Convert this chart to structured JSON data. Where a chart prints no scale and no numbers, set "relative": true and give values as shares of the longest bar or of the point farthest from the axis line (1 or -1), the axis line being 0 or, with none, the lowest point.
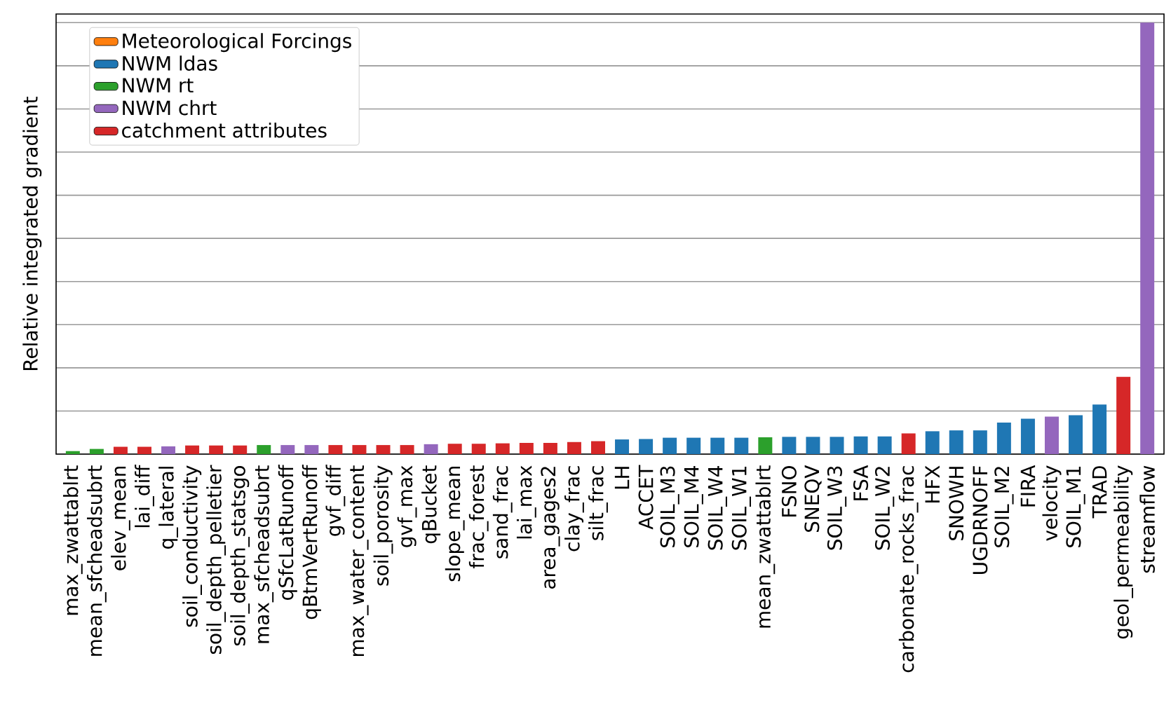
{
  "chart_data": {
    "type": "bar",
    "ylabel": "Relative integrated gradient",
    "relative": true,
    "grid": "y",
    "legend": "top left",
    "categories": [
      "max_zwattablrt",
      "mean_sfcheadsubrt",
      "elev_mean",
      "lai_diff",
      "q_lateral",
      "soil_conductivity",
      "soil_depth_pelletier",
      "soil_depth_statsgo",
      "max_sfcheadsubrt",
      "qSfcLatRunoff",
      "qBtmVertRunoff",
      "gvf_diff",
      "max_water_content",
      "soil_porosity",
      "gvf_max",
      "qBucket",
      "slope_mean",
      "frac_forest",
      "sand_frac",
      "lai_max",
      "area_gages2",
      "clay_frac",
      "silt_frac",
      "LH",
      "ACCET",
      "SOIL_M3",
      "SOIL_M4",
      "SOIL_W4",
      "SOIL_W1",
      "mean_zwattablrt",
      "FSNO",
      "SNEQV",
      "SOIL_W3",
      "FSA",
      "SOIL_W2",
      "carbonate_rocks_frac",
      "HFX",
      "SNOWH",
      "UGDRNOFF",
      "SOIL_M2",
      "FIRA",
      "velocity",
      "SOIL_M1",
      "TRAD",
      "geol_permeability",
      "streamflow"
    ],
    "series": [
      {
        "name": "Meteorological Forcings",
        "color": "#ff7f0e",
        "values": [
          null,
          null,
          null,
          null,
          null,
          null,
          null,
          null,
          null,
          null,
          null,
          null,
          null,
          null,
          null,
          null,
          null,
          null,
          null,
          null,
          null,
          null,
          null,
          null,
          null,
          null,
          null,
          null,
          null,
          null,
          null,
          null,
          null,
          null,
          null,
          null,
          null,
          null,
          null,
          null,
          null,
          null,
          null,
          null,
          null,
          null
        ]
      },
      {
        "name": "NWM ldas",
        "color": "#1f77b4",
        "values": [
          null,
          null,
          null,
          null,
          null,
          null,
          null,
          null,
          null,
          null,
          null,
          null,
          null,
          null,
          null,
          null,
          null,
          null,
          null,
          null,
          null,
          null,
          null,
          0.034,
          0.035,
          0.038,
          0.038,
          0.038,
          0.038,
          null,
          0.04,
          0.04,
          0.04,
          0.041,
          0.041,
          null,
          0.053,
          0.055,
          0.055,
          0.073,
          0.082,
          null,
          0.09,
          0.115,
          null,
          null
        ]
      },
      {
        "name": "NWM rt",
        "color": "#2ca02c",
        "values": [
          0.007,
          0.012,
          null,
          null,
          null,
          null,
          null,
          null,
          0.021,
          null,
          null,
          null,
          null,
          null,
          null,
          null,
          null,
          null,
          null,
          null,
          null,
          null,
          null,
          null,
          null,
          null,
          null,
          null,
          null,
          0.039,
          null,
          null,
          null,
          null,
          null,
          null,
          null,
          null,
          null,
          null,
          null,
          null,
          null,
          null,
          null,
          null
        ]
      },
      {
        "name": "NWM chrt",
        "color": "#9467bd",
        "values": [
          null,
          null,
          null,
          null,
          0.018,
          null,
          null,
          null,
          null,
          0.021,
          0.021,
          null,
          null,
          null,
          null,
          0.023,
          null,
          null,
          null,
          null,
          null,
          null,
          null,
          null,
          null,
          null,
          null,
          null,
          null,
          null,
          null,
          null,
          null,
          null,
          null,
          null,
          null,
          null,
          null,
          null,
          null,
          0.087,
          null,
          null,
          null,
          1
        ]
      },
      {
        "name": "catchment attributes",
        "color": "#d62728",
        "values": [
          null,
          null,
          0.017,
          0.017,
          null,
          0.02,
          0.02,
          0.02,
          null,
          null,
          null,
          0.021,
          0.021,
          0.021,
          0.021,
          null,
          0.024,
          0.024,
          0.025,
          0.026,
          0.026,
          0.028,
          0.03,
          null,
          null,
          null,
          null,
          null,
          null,
          null,
          null,
          null,
          null,
          null,
          null,
          0.048,
          null,
          null,
          null,
          null,
          null,
          null,
          null,
          null,
          0.179,
          null
        ]
      }
    ]
  }
}
